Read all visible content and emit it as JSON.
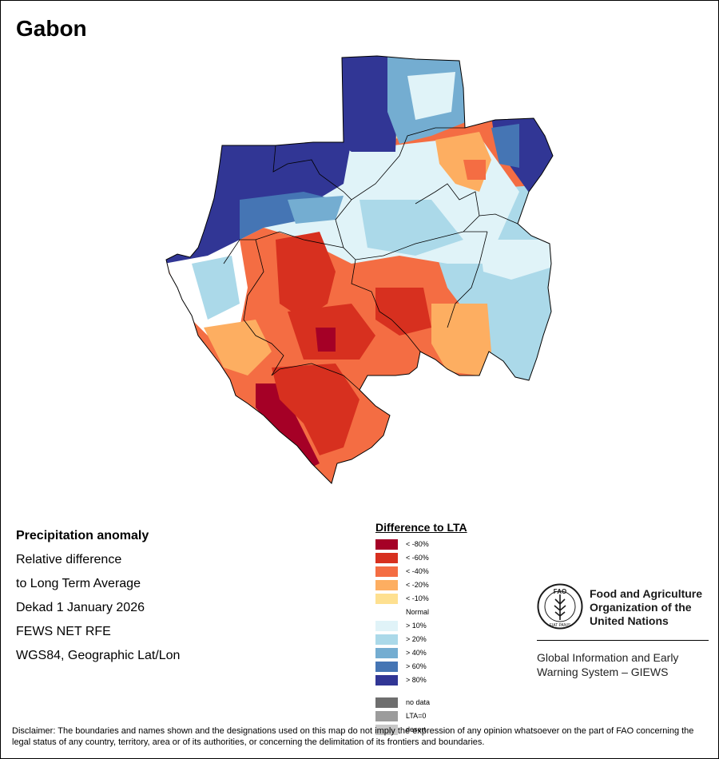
{
  "title": "Gabon",
  "info": {
    "line1": "Precipitation anomaly",
    "line2": "Relative difference",
    "line3": "to Long Term Average",
    "line4": "Dekad 1 January 2026",
    "line5": "FEWS NET RFE",
    "line6": "WGS84, Geographic Lat/Lon"
  },
  "legend": {
    "title": "Difference to LTA",
    "items": [
      {
        "label": "< -80%",
        "color": "#a50026"
      },
      {
        "label": "< -60%",
        "color": "#d7301f"
      },
      {
        "label": "< -40%",
        "color": "#f46d43"
      },
      {
        "label": "< -20%",
        "color": "#fdae61"
      },
      {
        "label": "< -10%",
        "color": "#fee090"
      },
      {
        "label": "Normal",
        "color": "#ffffff"
      },
      {
        "label": "> 10%",
        "color": "#e0f3f8"
      },
      {
        "label": "> 20%",
        "color": "#abd9e9"
      },
      {
        "label": "> 40%",
        "color": "#74add1"
      },
      {
        "label": "> 60%",
        "color": "#4575b4"
      },
      {
        "label": "> 80%",
        "color": "#313695"
      }
    ],
    "extra": [
      {
        "label": "no data",
        "color": "#6e6e6e"
      },
      {
        "label": "LTA=0",
        "color": "#9c9c9c"
      },
      {
        "label": "desert",
        "color": "#c8c8c8"
      }
    ]
  },
  "fao": {
    "logo_text": "FAO",
    "logo_motto": "FIAT PANIS",
    "name_line1": "Food and Agriculture",
    "name_line2": "Organization of the",
    "name_line3": "United Nations",
    "giews_line1": "Global Information and Early",
    "giews_line2": "Warning System – GIEWS"
  },
  "disclaimer": "Disclaimer: The boundaries and names shown and the designations used on this map do not imply the expression of any opinion whatsoever on the part of FAO concerning the legal status of any country, territory, area or of its authorities, or concerning the delimitation of its frontiers and boundaries."
}
